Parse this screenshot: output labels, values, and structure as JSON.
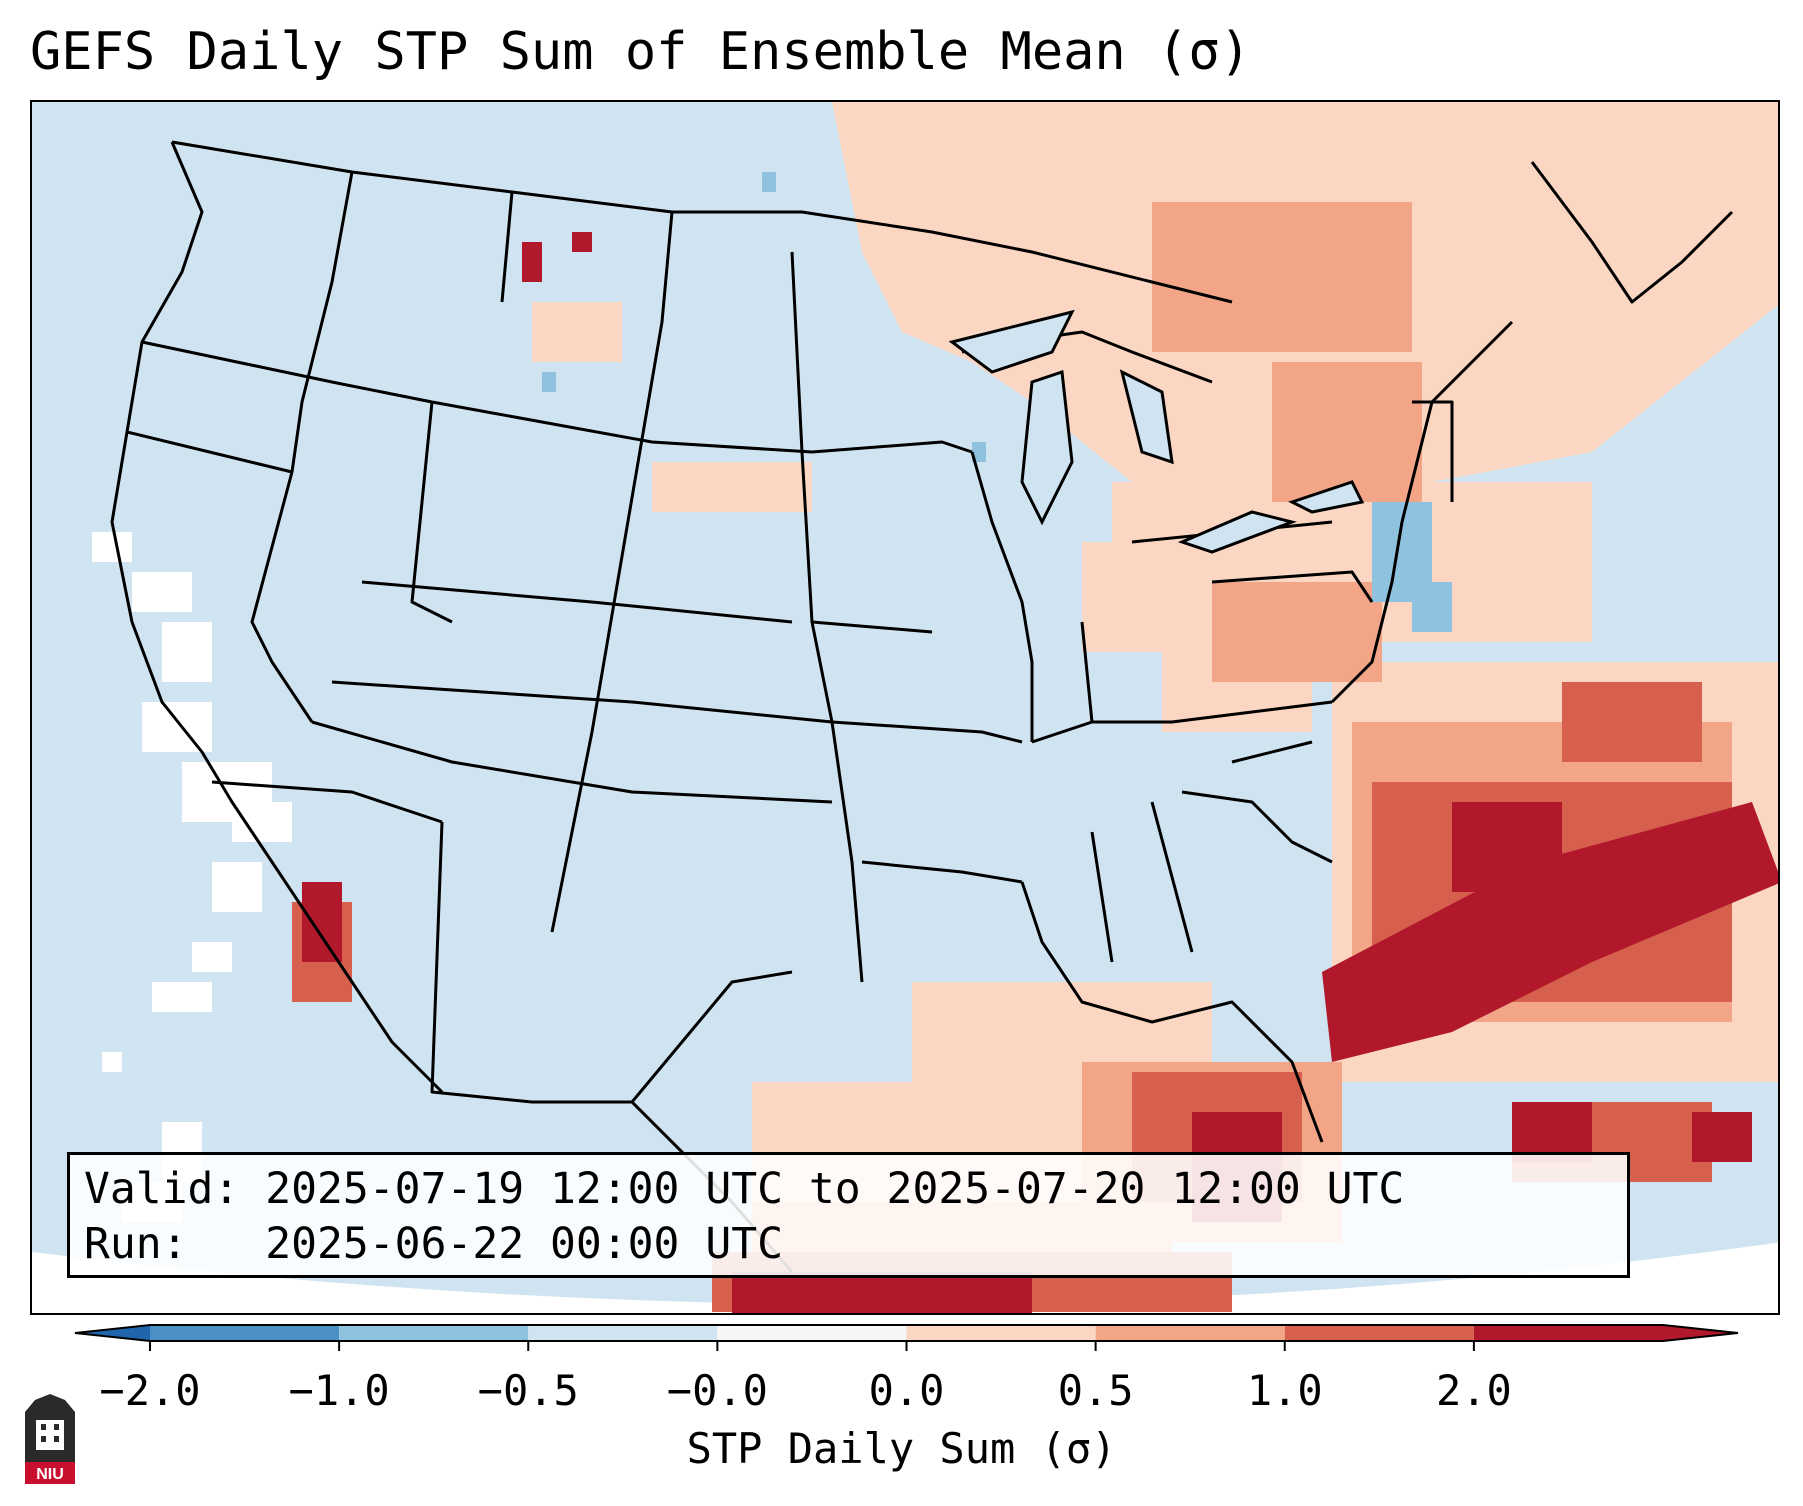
{
  "title": "GEFS Daily STP Sum of Ensemble Mean (σ)",
  "valid_label": "Valid:",
  "valid_value": "2025-07-19 12:00 UTC to 2025-07-20 12:00 UTC",
  "run_label": "Run:",
  "run_value": "2025-06-22 00:00 UTC",
  "colorbar": {
    "label": "STP Daily Sum (σ)",
    "ticks": [
      "−2.0",
      "−1.0",
      "−0.5",
      "−0.0",
      "0.0",
      "0.5",
      "1.0",
      "2.0"
    ],
    "colors": [
      "#4a90c4",
      "#8fc2de",
      "#cfe4f0",
      "#f6f6f6",
      "#fbd7c3",
      "#f3a587",
      "#d6604d",
      "#b2182b"
    ]
  },
  "map": {
    "base_color": "#cfe4f0",
    "ocean_white": "#ffffff",
    "positive_light": "#fbd7c3",
    "positive_mid": "#f3a587",
    "positive_strong": "#d6604d",
    "positive_max": "#b2182b",
    "negative_light": "#8fc2de"
  },
  "logo": "NIU"
}
